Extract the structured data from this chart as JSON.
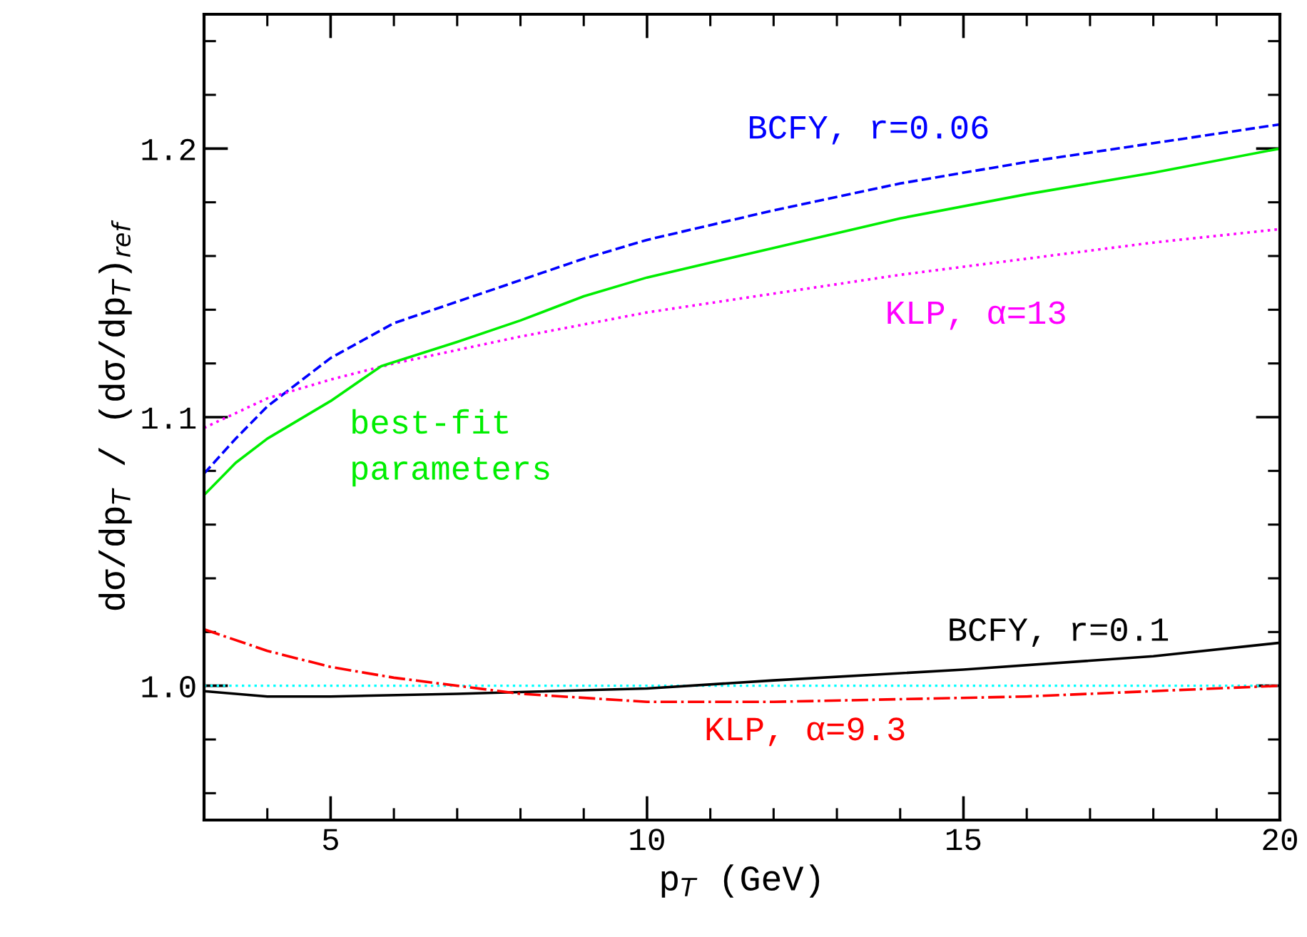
{
  "chart_data": {
    "type": "line",
    "xlabel": "p$_{T}$ (GeV)",
    "ylabel": "dσ/dp$_{T}$ / (dσ/dp$_{T}$)$_{ref}$",
    "xlim": [
      3,
      20
    ],
    "xticks": [
      5,
      10,
      15,
      20
    ],
    "ylim": [
      0.95,
      1.25
    ],
    "yticks": [
      {
        "value": 1.0,
        "label": "1.0"
      },
      1.1,
      1.2
    ],
    "grid": false,
    "legend": false,
    "ref_lines": [
      {
        "axis": "y",
        "value": 1.0,
        "color": "#00ffff",
        "line_style": "dotted"
      }
    ],
    "series": [
      {
        "name": "BCFY, r=0.06",
        "color": "#0000ff",
        "line_style": "dashed",
        "x": [
          3,
          3.5,
          4,
          5,
          6,
          7,
          8,
          9,
          10,
          12,
          14,
          16,
          18,
          20
        ],
        "values": [
          1.079,
          1.092,
          1.104,
          1.122,
          1.135,
          1.143,
          1.151,
          1.159,
          1.166,
          1.177,
          1.187,
          1.195,
          1.202,
          1.209
        ]
      },
      {
        "name": "KLP, α=13",
        "color": "#ff00ff",
        "line_style": "dotted",
        "x": [
          3,
          4,
          5,
          6,
          8,
          10,
          12,
          14,
          16,
          18,
          20
        ],
        "values": [
          1.096,
          1.107,
          1.114,
          1.12,
          1.13,
          1.139,
          1.146,
          1.153,
          1.159,
          1.165,
          1.17
        ]
      },
      {
        "name": "best-fit\nparameters",
        "color": "#00ee00",
        "line_style": "solid",
        "x": [
          3,
          3.5,
          4,
          5,
          5.8,
          7,
          8,
          9,
          10,
          12,
          14,
          16,
          18,
          20
        ],
        "values": [
          1.071,
          1.083,
          1.092,
          1.106,
          1.119,
          1.128,
          1.136,
          1.145,
          1.152,
          1.163,
          1.174,
          1.183,
          1.191,
          1.2
        ]
      },
      {
        "name": "BCFY, r=0.1",
        "color": "#000000",
        "line_style": "solid",
        "x": [
          3,
          4,
          5,
          7,
          10,
          12,
          15,
          18,
          20
        ],
        "values": [
          0.998,
          0.996,
          0.996,
          0.997,
          0.999,
          1.002,
          1.006,
          1.011,
          1.016
        ]
      },
      {
        "name": "KLP, α=9.3",
        "color": "#ff0000",
        "line_style": "dashdot",
        "x": [
          3,
          4,
          5,
          6,
          8,
          10,
          12,
          14,
          16,
          18,
          20
        ],
        "values": [
          1.021,
          1.013,
          1.007,
          1.003,
          0.997,
          0.994,
          0.994,
          0.995,
          0.996,
          0.998,
          1.0
        ]
      }
    ]
  }
}
